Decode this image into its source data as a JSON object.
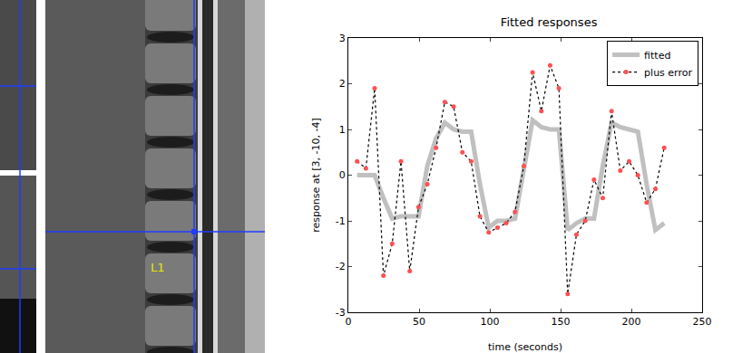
{
  "image_panel": {
    "label": "L1"
  },
  "chart_data": {
    "type": "line",
    "title": "Fitted responses",
    "x_label": "time (seconds)",
    "y_label": "response at [3, -10, -4]",
    "x": [
      6.2,
      12.4,
      18.6,
      24.8,
      31,
      37.2,
      43.4,
      49.6,
      55.8,
      62,
      68.2,
      74.4,
      80.6,
      86.8,
      93,
      99.2,
      105.4,
      111.6,
      117.8,
      124,
      130.2,
      136.4,
      142.6,
      148.8,
      155,
      161.2,
      167.4,
      173.6,
      179.8,
      186,
      192.2,
      198.4,
      204.6,
      210.8,
      217,
      223.2
    ],
    "series": [
      {
        "name": "fitted",
        "color": "#c0c0c0",
        "line_style": "solid",
        "values": [
          0,
          0,
          0,
          -0.5,
          -0.95,
          -0.9,
          -0.9,
          -0.9,
          0.2,
          0.8,
          1.15,
          1.0,
          0.95,
          0.95,
          -0.2,
          -1.15,
          -1.0,
          -1.0,
          -0.95,
          0.2,
          1.2,
          1.05,
          1.0,
          1.0,
          -1.2,
          -1.05,
          -0.95,
          -0.95,
          0.2,
          1.15,
          1.05,
          1.0,
          0.95,
          -0.2,
          -1.2,
          -1.05
        ]
      },
      {
        "name": "plus error",
        "color": "#000000",
        "line_style": "dotted",
        "marker": "circle",
        "values": [
          0.3,
          0.15,
          1.9,
          -2.2,
          -1.5,
          0.3,
          -2.1,
          -0.7,
          -0.2,
          0.6,
          1.6,
          1.5,
          0.5,
          0.3,
          -0.9,
          -1.25,
          -1.15,
          -1.05,
          -0.8,
          0.2,
          2.25,
          1.4,
          2.4,
          1.9,
          -2.6,
          -1.3,
          -1.0,
          -0.1,
          -0.5,
          1.4,
          0.1,
          0.3,
          0.0,
          -0.6,
          -0.3,
          0.6
        ]
      }
    ],
    "xlim": [
      0,
      250
    ],
    "xticks": [
      0,
      50,
      100,
      150,
      200,
      250
    ],
    "ylim": [
      -3,
      3
    ],
    "yticks": [
      -3,
      -2,
      -1,
      0,
      1,
      2,
      3
    ],
    "grid": false,
    "legend": "top-right"
  }
}
